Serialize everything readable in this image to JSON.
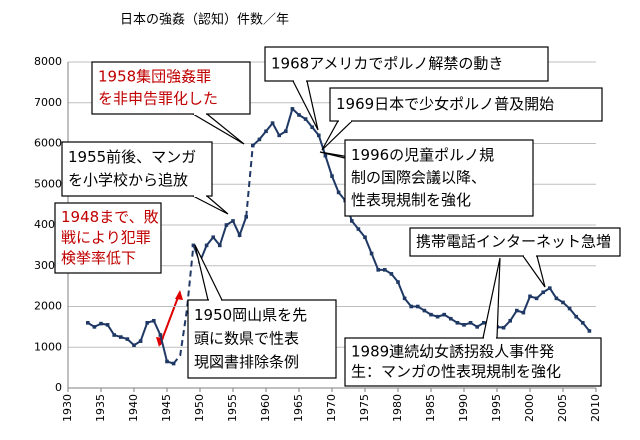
{
  "chart_data": {
    "type": "line",
    "title": "日本の強姦（認知）件数／年",
    "xlim": [
      1930,
      2010
    ],
    "xticks": [
      1930,
      1935,
      1940,
      1945,
      1950,
      1955,
      1960,
      1965,
      1970,
      1975,
      1980,
      1985,
      1990,
      1995,
      2000,
      2005,
      2010
    ],
    "ylim": [
      0,
      8000
    ],
    "yticks": [
      0,
      1000,
      2000,
      3000,
      4000,
      5000,
      6000,
      7000,
      8000
    ],
    "color": "#1f3864",
    "series": [
      {
        "dashed": false,
        "x": [
          1933,
          1934,
          1935,
          1936,
          1937,
          1938,
          1939,
          1940,
          1941,
          1942,
          1943,
          1944,
          1945,
          1946
        ],
        "values": [
          1600,
          1500,
          1580,
          1550,
          1300,
          1250,
          1200,
          1050,
          1150,
          1600,
          1650,
          1300,
          650,
          600
        ]
      },
      {
        "dashed": true,
        "x": [
          1946,
          1947,
          1948,
          1949
        ],
        "values": [
          600,
          800,
          1900,
          3500
        ]
      },
      {
        "dashed": false,
        "x": [
          1949,
          1950,
          1951,
          1952,
          1953,
          1954,
          1955,
          1956,
          1957
        ],
        "values": [
          3500,
          3100,
          3500,
          3700,
          3500,
          4000,
          4100,
          3750,
          4200
        ]
      },
      {
        "dashed": true,
        "x": [
          1957,
          1958
        ],
        "values": [
          4200,
          5950
        ]
      },
      {
        "dashed": false,
        "x": [
          1958,
          1959,
          1960,
          1961,
          1962,
          1963,
          1964,
          1965,
          1966,
          1967,
          1968,
          1969,
          1970,
          1971,
          1972,
          1973,
          1974,
          1975,
          1976,
          1977,
          1978,
          1979,
          1980,
          1981,
          1982,
          1983,
          1984,
          1985,
          1986,
          1987,
          1988,
          1989,
          1990,
          1991,
          1992,
          1993,
          1994,
          1995,
          1996,
          1997,
          1998,
          1999,
          2000,
          2001,
          2002,
          2003,
          2004,
          2005,
          2006,
          2007,
          2008,
          2009
        ],
        "values": [
          5950,
          6100,
          6300,
          6500,
          6200,
          6300,
          6850,
          6700,
          6600,
          6400,
          6200,
          5700,
          5200,
          4800,
          4600,
          4100,
          3900,
          3700,
          3300,
          2900,
          2900,
          2800,
          2600,
          2200,
          2000,
          2000,
          1900,
          1800,
          1750,
          1800,
          1700,
          1600,
          1550,
          1600,
          1500,
          1600,
          1600,
          1500,
          1480,
          1650,
          1900,
          1850,
          2250,
          2200,
          2350,
          2450,
          2200,
          2100,
          1950,
          1750,
          1600,
          1400
        ]
      }
    ],
    "annotations": [
      {
        "lines": [
          "1958集団強姦罪",
          "を非申告罪化した"
        ],
        "color": "#c00000"
      },
      {
        "lines": [
          "1968アメリカでポルノ解禁の動き"
        ],
        "color": "#000000"
      },
      {
        "lines": [
          "1969日本で少女ポルノ普及開始"
        ],
        "color": "#000000"
      },
      {
        "lines": [
          "1955前後、マンガ",
          "を小学校から追放"
        ],
        "color": "#000000"
      },
      {
        "lines": [
          "1948まで、敗",
          "戦により犯罪",
          "検挙率低下"
        ],
        "color": "#c00000"
      },
      {
        "lines": [
          "1996の児童ポルノ規",
          "制の国際会議以降、",
          "性表現規制を強化"
        ],
        "color": "#000000"
      },
      {
        "lines": [
          "携帯電話インターネット急増"
        ],
        "color": "#000000"
      },
      {
        "lines": [
          "1950岡山県を先",
          "頭に数県で性表",
          "現図書排除条例"
        ],
        "color": "#000000"
      },
      {
        "lines": [
          "1989連続幼女誘拐殺人事件発",
          "生：マンガの性表現規制を強化"
        ],
        "color": "#000000"
      }
    ]
  }
}
